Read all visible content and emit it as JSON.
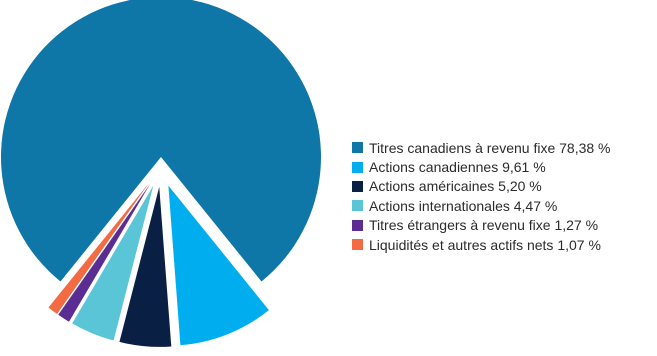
{
  "chart_data": {
    "type": "pie",
    "title": "",
    "exploded": true,
    "legend_position": "right",
    "slices": [
      {
        "label": "Titres canadiens à revenu fixe 78,38 %",
        "value": 78.38,
        "color": "#0F76A8"
      },
      {
        "label": "Actions canadiennes 9,61 %",
        "value": 9.61,
        "color": "#00AEEF"
      },
      {
        "label": "Actions américaines 5,20 %",
        "value": 5.2,
        "color": "#0A1F44"
      },
      {
        "label": "Actions internationales 4,47 %",
        "value": 4.47,
        "color": "#5BC5D8"
      },
      {
        "label": "Titres étrangers à revenu fixe 1,27 %",
        "value": 1.27,
        "color": "#5B2C92"
      },
      {
        "label": "Liquidités et autres actifs nets 1,07 %",
        "value": 1.07,
        "color": "#F26B43"
      }
    ]
  }
}
